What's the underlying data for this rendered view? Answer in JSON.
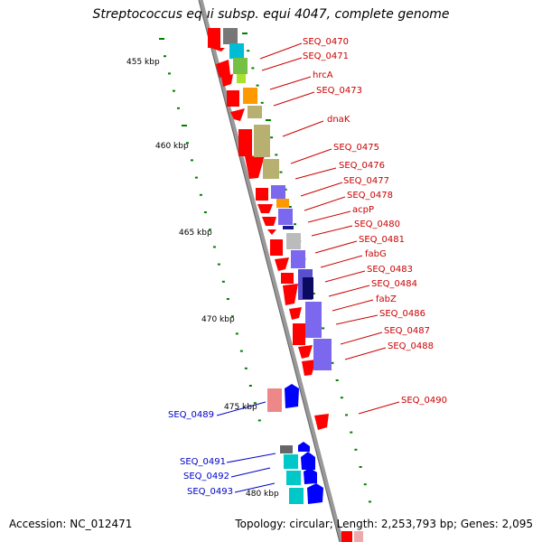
{
  "title": "Streptococcus equi subsp. equi 4047, complete genome",
  "footer": {
    "accession": "Accession: NC_012471",
    "topology": "Topology: circular; Length: 2,253,793 bp; Genes: 2,095"
  },
  "scale_labels": [
    "455 kbp",
    "460 kbp",
    "465 kbp",
    "470 kbp",
    "475 kbp",
    "480 kbp"
  ],
  "gene_labels_forward": [
    "SEQ_0470",
    "SEQ_0471",
    "hrcA",
    "SEQ_0473",
    "dnaK",
    "SEQ_0475",
    "SEQ_0476",
    "SEQ_0477",
    "SEQ_0478",
    "acpP",
    "SEQ_0480",
    "SEQ_0481",
    "fabG",
    "SEQ_0483",
    "SEQ_0484",
    "fabZ",
    "SEQ_0486",
    "SEQ_0487",
    "SEQ_0488",
    "SEQ_0490"
  ],
  "gene_labels_reverse": [
    "SEQ_0489",
    "SEQ_0491",
    "SEQ_0492",
    "SEQ_0493"
  ],
  "colors": {
    "forward_label": "#cc0000",
    "reverse_label": "#0000cc",
    "forward_gene": "#ff0000",
    "reverse_gene": "#0000ff",
    "backbone": "#999999",
    "tick": "#008000"
  }
}
